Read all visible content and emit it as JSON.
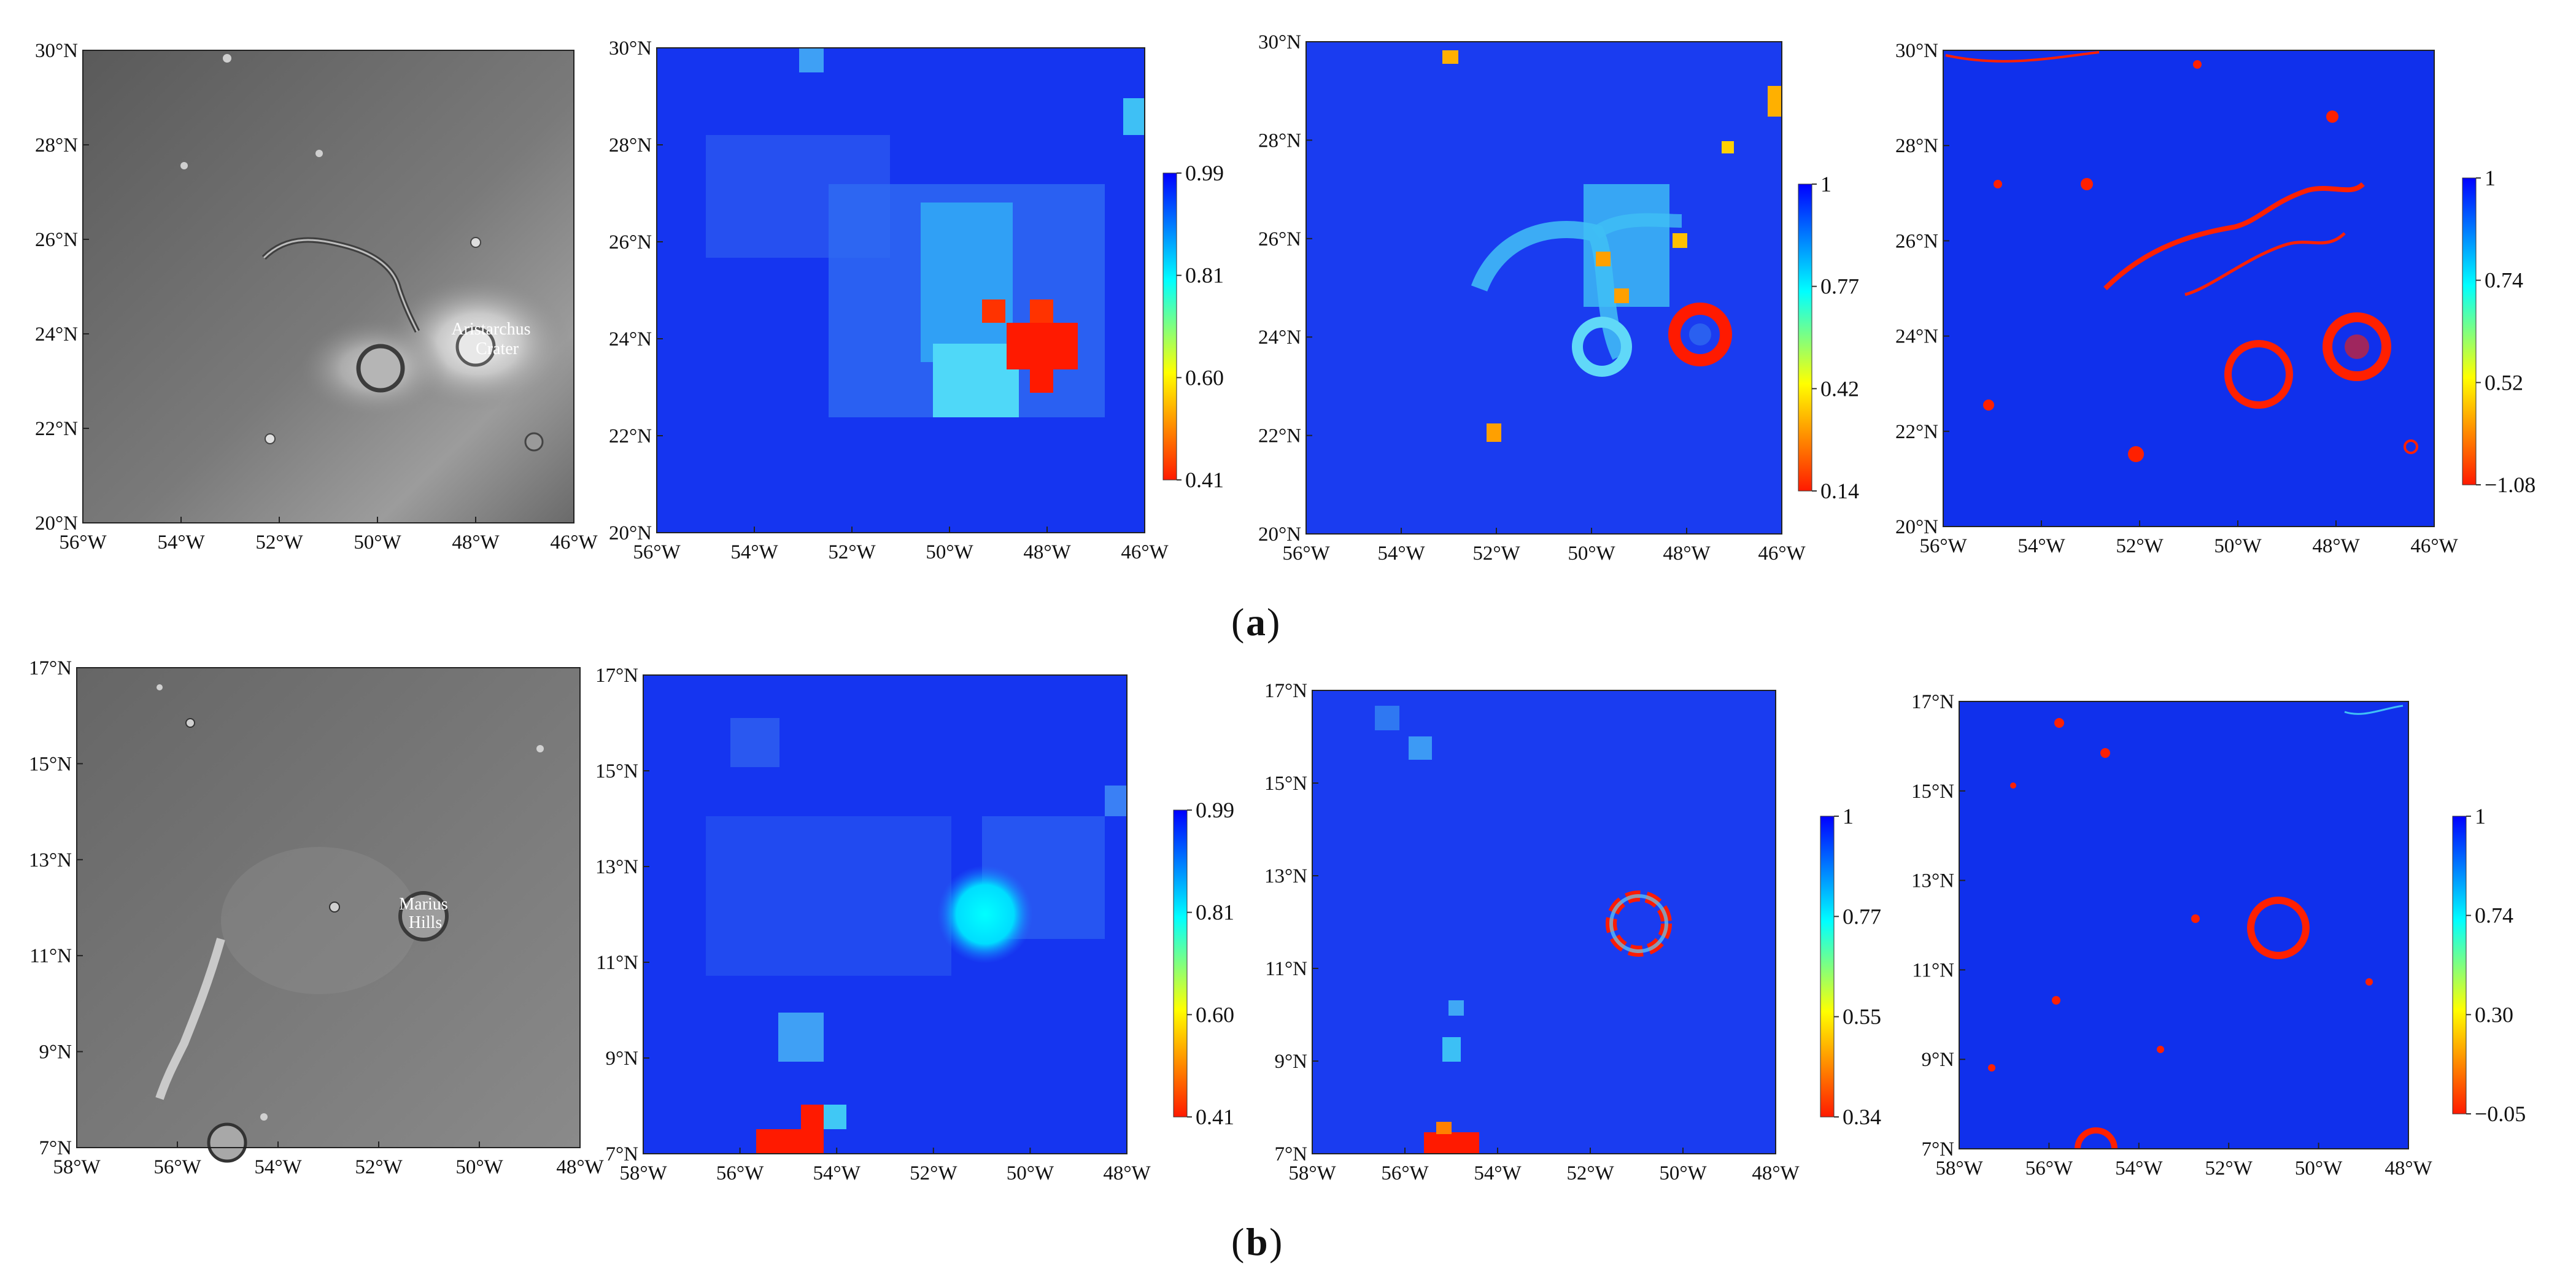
{
  "figure": {
    "rows": [
      {
        "caption": {
          "open": "(",
          "letter": "a",
          "close": ")"
        },
        "x_ticks": [
          "56°W",
          "54°W",
          "52°W",
          "50°W",
          "48°W",
          "46°W"
        ],
        "y_ticks": [
          "20°N",
          "22°N",
          "24°N",
          "26°N",
          "28°N",
          "30°N"
        ],
        "annotation": [
          "Aristarchus",
          "Crater"
        ],
        "colorbars": [
          [
            "0.99",
            "0.81",
            "0.60",
            "0.41"
          ],
          [
            "1",
            "0.77",
            "0.42",
            "0.14"
          ],
          [
            "1",
            "0.74",
            "0.52",
            "−1.08"
          ]
        ]
      },
      {
        "caption": {
          "open": "(",
          "letter": "b",
          "close": ")"
        },
        "x_ticks": [
          "58°W",
          "56°W",
          "54°W",
          "52°W",
          "50°W",
          "48°W"
        ],
        "y_ticks": [
          "7°N",
          "9°N",
          "11°N",
          "13°N",
          "15°N",
          "17°N"
        ],
        "annotation": [
          "Marius",
          "Hills"
        ],
        "colorbars": [
          [
            "0.99",
            "0.81",
            "0.60",
            "0.41"
          ],
          [
            "1",
            "0.77",
            "0.55",
            "0.34"
          ],
          [
            "1",
            "0.74",
            "0.30",
            "−0.05"
          ]
        ]
      }
    ],
    "colors": {
      "jet_low": "#ff1a00",
      "jet_mid": "#ffff00",
      "jet_cyan": "#00ffff",
      "jet_high": "#0000ff",
      "map_blue": "#1030f0",
      "hot_red": "#ff2000"
    }
  }
}
